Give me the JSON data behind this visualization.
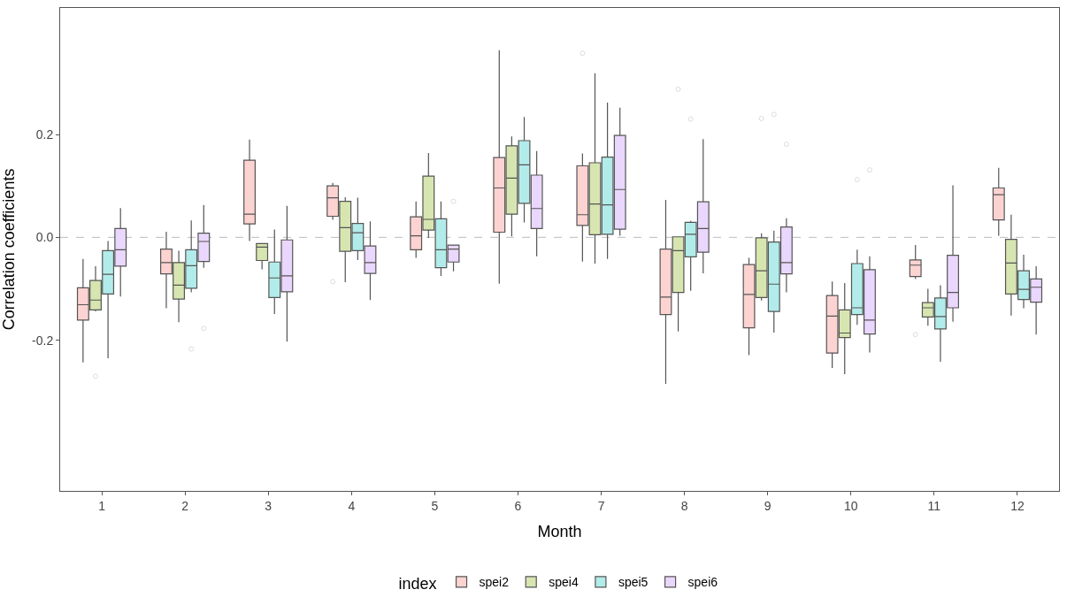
{
  "chart_data": {
    "type": "box",
    "xlabel": "Month",
    "ylabel": "Correlation coefficients",
    "legend_title": "index",
    "legend": "bottom",
    "grid": false,
    "categories": [
      "1",
      "2",
      "3",
      "4",
      "5",
      "6",
      "7",
      "8",
      "9",
      "10",
      "11",
      "12"
    ],
    "ylim": [
      -0.493,
      0.446
    ],
    "yticks": [
      {
        "value": -0.2,
        "label": "-0.2"
      },
      {
        "value": 0,
        "label": "0.0"
      },
      {
        "value": 0.2,
        "label": "0.2"
      }
    ],
    "ref_lines": [
      {
        "axis": "y",
        "value": 0,
        "label": null,
        "color": "#bbbbbb",
        "line_style": "dashed"
      }
    ],
    "series": [
      {
        "name": "spei2",
        "color": "#fdd3d1",
        "boxes": [
          {
            "low": -0.243,
            "q1": -0.161,
            "median": -0.131,
            "q3": -0.098,
            "high": -0.042
          },
          {
            "low": -0.138,
            "q1": -0.071,
            "median": -0.049,
            "q3": -0.023,
            "high": 0.011
          },
          {
            "low": -0.007,
            "q1": 0.026,
            "median": 0.045,
            "q3": 0.15,
            "high": 0.19,
            "outliers": [
              0.073
            ]
          },
          {
            "low": 0.034,
            "q1": 0.041,
            "median": 0.077,
            "q3": 0.1,
            "high": 0.106,
            "outliers": [
              -0.086
            ]
          },
          {
            "low": -0.04,
            "q1": -0.024,
            "median": 0.003,
            "q3": 0.04,
            "high": 0.07
          },
          {
            "low": -0.09,
            "q1": 0.01,
            "median": 0.096,
            "q3": 0.155,
            "high": 0.364
          },
          {
            "low": -0.047,
            "q1": 0.023,
            "median": 0.044,
            "q3": 0.139,
            "high": 0.163,
            "outliers": [
              0.358
            ]
          },
          {
            "low": -0.285,
            "q1": -0.15,
            "median": -0.116,
            "q3": -0.023,
            "high": 0.073
          },
          {
            "low": -0.229,
            "q1": -0.176,
            "median": -0.111,
            "q3": -0.053,
            "high": -0.04
          },
          {
            "low": -0.254,
            "q1": -0.225,
            "median": -0.153,
            "q3": -0.113,
            "high": -0.086
          },
          {
            "low": -0.081,
            "q1": -0.076,
            "median": -0.054,
            "q3": -0.044,
            "high": -0.015,
            "outliers": [
              -0.189
            ]
          },
          {
            "low": 0.003,
            "q1": 0.034,
            "median": 0.083,
            "q3": 0.096,
            "high": 0.135
          }
        ]
      },
      {
        "name": "spei4",
        "color": "#d7e6b0",
        "boxes": [
          {
            "low": -0.144,
            "q1": -0.141,
            "median": -0.122,
            "q3": -0.084,
            "high": -0.056,
            "outliers": [
              -0.27
            ]
          },
          {
            "low": -0.165,
            "q1": -0.12,
            "median": -0.093,
            "q3": -0.049,
            "high": -0.026
          },
          {
            "low": -0.062,
            "q1": -0.045,
            "median": -0.019,
            "q3": -0.012,
            "high": -0.012
          },
          {
            "low": -0.087,
            "q1": -0.027,
            "median": 0.019,
            "q3": 0.07,
            "high": 0.078
          },
          {
            "low": -0.001,
            "q1": 0.014,
            "median": 0.035,
            "q3": 0.119,
            "high": 0.164
          },
          {
            "low": 0.002,
            "q1": 0.045,
            "median": 0.115,
            "q3": 0.178,
            "high": 0.196
          },
          {
            "low": -0.051,
            "q1": 0.005,
            "median": 0.065,
            "q3": 0.145,
            "high": 0.319
          },
          {
            "low": -0.183,
            "q1": -0.107,
            "median": -0.026,
            "q3": 0.001,
            "high": 0.001,
            "outliers": [
              0.288
            ]
          },
          {
            "low": -0.123,
            "q1": -0.117,
            "median": -0.065,
            "q3": -0.001,
            "high": 0.008,
            "outliers": [
              0.231
            ]
          },
          {
            "low": -0.266,
            "q1": -0.195,
            "median": -0.186,
            "q3": -0.141,
            "high": -0.089
          },
          {
            "low": -0.172,
            "q1": -0.155,
            "median": -0.137,
            "q3": -0.127,
            "high": -0.1
          },
          {
            "low": -0.152,
            "q1": -0.11,
            "median": -0.05,
            "q3": -0.004,
            "high": 0.044
          }
        ]
      },
      {
        "name": "spei5",
        "color": "#b2ecea",
        "boxes": [
          {
            "low": -0.235,
            "q1": -0.11,
            "median": -0.072,
            "q3": -0.026,
            "high": -0.007
          },
          {
            "low": -0.107,
            "q1": -0.099,
            "median": -0.055,
            "q3": -0.024,
            "high": 0.033,
            "outliers": [
              -0.217
            ]
          },
          {
            "low": -0.149,
            "q1": -0.117,
            "median": -0.079,
            "q3": -0.048,
            "high": 0.015
          },
          {
            "low": -0.044,
            "q1": -0.026,
            "median": 0.009,
            "q3": 0.027,
            "high": 0.077
          },
          {
            "low": -0.075,
            "q1": -0.059,
            "median": -0.024,
            "q3": 0.036,
            "high": 0.07
          },
          {
            "low": 0.029,
            "q1": 0.066,
            "median": 0.141,
            "q3": 0.188,
            "high": 0.234
          },
          {
            "low": -0.042,
            "q1": 0.006,
            "median": 0.063,
            "q3": 0.156,
            "high": 0.262
          },
          {
            "low": -0.104,
            "q1": -0.038,
            "median": 0.006,
            "q3": 0.029,
            "high": 0.032,
            "outliers": [
              0.23
            ]
          },
          {
            "low": -0.185,
            "q1": -0.144,
            "median": -0.091,
            "q3": -0.009,
            "high": 0.013,
            "outliers": [
              0.239
            ]
          },
          {
            "low": -0.17,
            "q1": -0.15,
            "median": -0.137,
            "q3": -0.051,
            "high": -0.024,
            "outliers": [
              0.112
            ]
          },
          {
            "low": -0.242,
            "q1": -0.178,
            "median": -0.154,
            "q3": -0.118,
            "high": -0.093
          },
          {
            "low": -0.138,
            "q1": -0.121,
            "median": -0.101,
            "q3": -0.065,
            "high": -0.034
          }
        ]
      },
      {
        "name": "spei6",
        "color": "#ead7fd",
        "boxes": [
          {
            "low": -0.115,
            "q1": -0.056,
            "median": -0.024,
            "q3": 0.017,
            "high": 0.057
          },
          {
            "low": -0.059,
            "q1": -0.047,
            "median": -0.008,
            "q3": 0.008,
            "high": 0.063,
            "outliers": [
              -0.177
            ]
          },
          {
            "low": -0.203,
            "q1": -0.106,
            "median": -0.075,
            "q3": -0.005,
            "high": 0.061
          },
          {
            "low": -0.122,
            "q1": -0.07,
            "median": -0.049,
            "q3": -0.017,
            "high": 0.031
          },
          {
            "low": -0.066,
            "q1": -0.048,
            "median": -0.023,
            "q3": -0.015,
            "high": -0.015,
            "outliers": [
              0.07
            ]
          },
          {
            "low": -0.037,
            "q1": 0.017,
            "median": 0.056,
            "q3": 0.121,
            "high": 0.168
          },
          {
            "low": 0.003,
            "q1": 0.016,
            "median": 0.093,
            "q3": 0.198,
            "high": 0.252
          },
          {
            "low": -0.07,
            "q1": -0.029,
            "median": 0.017,
            "q3": 0.069,
            "high": 0.191
          },
          {
            "low": -0.107,
            "q1": -0.071,
            "median": -0.049,
            "q3": 0.02,
            "high": 0.037,
            "outliers": [
              0.181
            ]
          },
          {
            "low": -0.224,
            "q1": -0.188,
            "median": -0.161,
            "q3": -0.063,
            "high": -0.037,
            "outliers": [
              0.131
            ]
          },
          {
            "low": -0.164,
            "q1": -0.137,
            "median": -0.107,
            "q3": -0.035,
            "high": 0.101
          },
          {
            "low": -0.189,
            "q1": -0.126,
            "median": -0.097,
            "q3": -0.081,
            "high": -0.056
          }
        ]
      }
    ]
  }
}
